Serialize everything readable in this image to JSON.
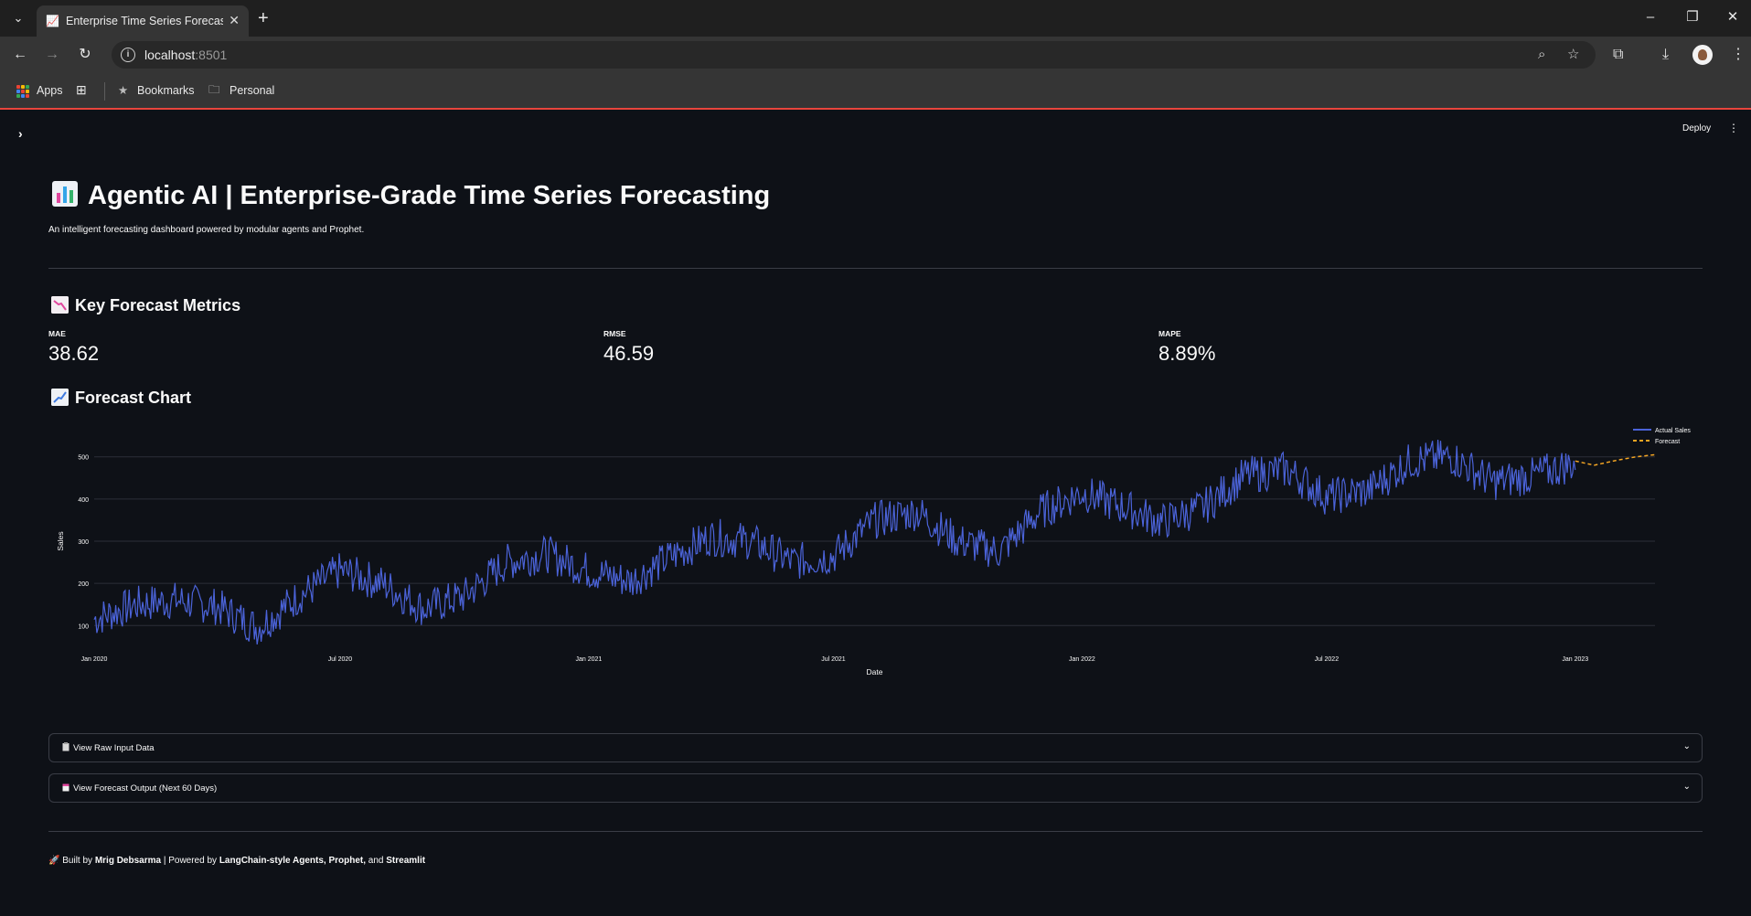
{
  "browser": {
    "tab_title": "Enterprise Time Series Forecasting",
    "url_host": "localhost",
    "url_port": ":8501",
    "bookmarks": {
      "apps": "Apps",
      "bookmarks": "Bookmarks",
      "personal": "Personal"
    }
  },
  "app": {
    "deploy_label": "Deploy",
    "title": "Agentic AI | Enterprise-Grade Time Series Forecasting",
    "subtitle": "An intelligent forecasting dashboard powered by modular agents and Prophet.",
    "metrics_heading": "Key Forecast Metrics",
    "metrics": [
      {
        "label": "MAE",
        "value": "38.62"
      },
      {
        "label": "RMSE",
        "value": "46.59"
      },
      {
        "label": "MAPE",
        "value": "8.89%"
      }
    ],
    "chart_heading": "Forecast Chart",
    "expanders": [
      {
        "label": "View Raw Input Data"
      },
      {
        "label": "View Forecast Output (Next 60 Days)"
      }
    ],
    "footer": {
      "built_by_prefix": "Built by ",
      "author": "Mrig Debsarma",
      "powered_prefix": " | Powered by ",
      "tech1": "LangChain-style Agents, Prophet,",
      "and_text": " and ",
      "tech2": "Streamlit"
    }
  },
  "chart_data": {
    "type": "line",
    "xlabel": "Date",
    "ylabel": "Sales",
    "x_ticks": [
      "Jan 2020",
      "Jul 2020",
      "Jan 2021",
      "Jul 2021",
      "Jan 2022",
      "Jul 2022",
      "Jan 2023"
    ],
    "y_ticks": [
      100,
      200,
      300,
      400,
      500
    ],
    "ylim": [
      40,
      560
    ],
    "x_range": [
      "2020-01-01",
      "2023-03-01"
    ],
    "grid": "horizontal",
    "legend_position": "top-right",
    "series": [
      {
        "name": "Actual Sales",
        "color": "#4b63d9",
        "style": "solid",
        "points": [
          [
            "2020-01-01",
            115
          ],
          [
            "2020-02-01",
            150
          ],
          [
            "2020-03-01",
            160
          ],
          [
            "2020-04-01",
            145
          ],
          [
            "2020-05-01",
            95
          ],
          [
            "2020-06-01",
            170
          ],
          [
            "2020-07-01",
            230
          ],
          [
            "2020-08-01",
            200
          ],
          [
            "2020-09-01",
            140
          ],
          [
            "2020-10-01",
            170
          ],
          [
            "2020-11-01",
            250
          ],
          [
            "2020-12-01",
            270
          ],
          [
            "2021-01-01",
            230
          ],
          [
            "2021-02-01",
            205
          ],
          [
            "2021-03-01",
            260
          ],
          [
            "2021-04-01",
            310
          ],
          [
            "2021-05-01",
            300
          ],
          [
            "2021-06-01",
            250
          ],
          [
            "2021-07-01",
            265
          ],
          [
            "2021-08-01",
            350
          ],
          [
            "2021-09-01",
            370
          ],
          [
            "2021-10-01",
            300
          ],
          [
            "2021-11-01",
            275
          ],
          [
            "2021-12-01",
            370
          ],
          [
            "2022-01-01",
            415
          ],
          [
            "2022-02-01",
            380
          ],
          [
            "2022-03-01",
            345
          ],
          [
            "2022-04-01",
            380
          ],
          [
            "2022-05-01",
            455
          ],
          [
            "2022-06-01",
            470
          ],
          [
            "2022-07-01",
            405
          ],
          [
            "2022-08-01",
            420
          ],
          [
            "2022-09-01",
            490
          ],
          [
            "2022-10-01",
            500
          ],
          [
            "2022-11-01",
            440
          ],
          [
            "2022-12-01",
            455
          ],
          [
            "2023-01-01",
            485
          ]
        ]
      },
      {
        "name": "Forecast",
        "color": "#f5a623",
        "style": "dashed",
        "points": [
          [
            "2023-01-01",
            490
          ],
          [
            "2023-01-15",
            480
          ],
          [
            "2023-02-01",
            492
          ],
          [
            "2023-02-15",
            500
          ],
          [
            "2023-03-01",
            505
          ]
        ]
      }
    ]
  }
}
